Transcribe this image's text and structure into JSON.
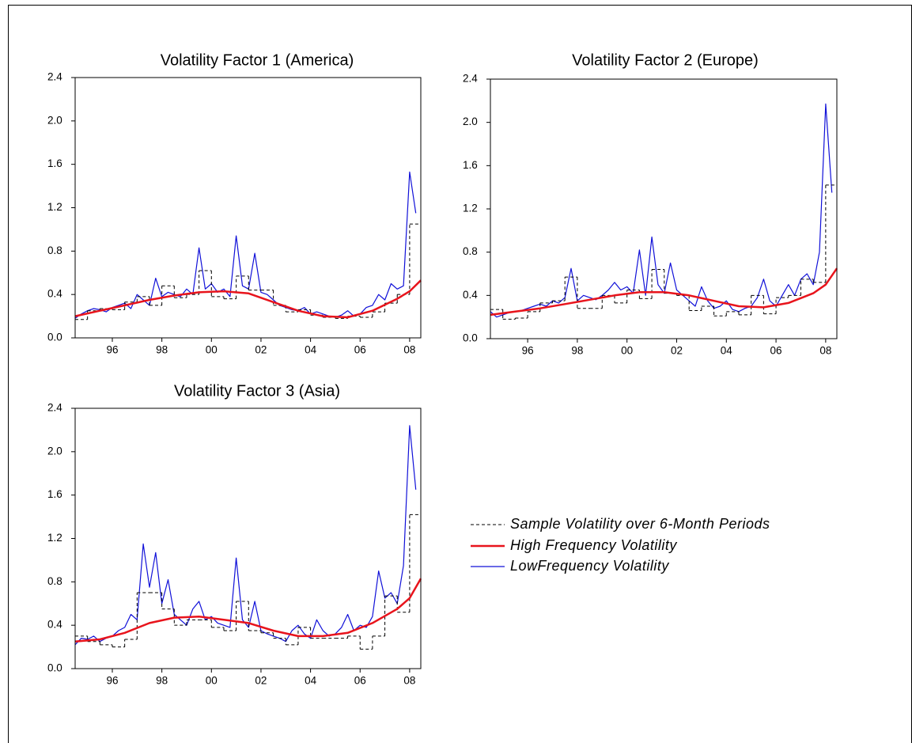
{
  "chart_data": [
    {
      "type": "line",
      "title": "Volatility Factor 1 (America)",
      "xlim": [
        1995,
        2008.95
      ],
      "ylim": [
        0,
        2.4
      ],
      "xticks": [
        {
          "value": 1996.5,
          "label": "96"
        },
        {
          "value": 1998.5,
          "label": "98"
        },
        {
          "value": 2000.5,
          "label": "00"
        },
        {
          "value": 2002.5,
          "label": "02"
        },
        {
          "value": 2004.5,
          "label": "04"
        },
        {
          "value": 2006.5,
          "label": "06"
        },
        {
          "value": 2008.5,
          "label": "08"
        }
      ],
      "yticks": [
        {
          "value": 0,
          "label": "0.0"
        },
        0.4,
        0.8,
        1.2,
        1.6,
        {
          "value": 2,
          "label": "2.0"
        },
        2.4
      ],
      "series": [
        {
          "name": "Sample Volatility over 6-Month Periods",
          "color": "#000000",
          "dashed": true,
          "step": true,
          "x": [
            1995,
            1995.5,
            1996,
            1996.5,
            1997,
            1997.5,
            1998,
            1998.5,
            1999,
            1999.5,
            2000,
            2000.5,
            2001,
            2001.5,
            2002,
            2002.5,
            2003,
            2003.5,
            2004,
            2004.5,
            2005,
            2005.5,
            2006,
            2006.5,
            2007,
            2007.5,
            2008,
            2008.5
          ],
          "values": [
            0.17,
            0.25,
            0.27,
            0.26,
            0.33,
            0.38,
            0.3,
            0.48,
            0.37,
            0.4,
            0.62,
            0.38,
            0.36,
            0.57,
            0.44,
            0.44,
            0.3,
            0.24,
            0.26,
            0.21,
            0.19,
            0.18,
            0.2,
            0.19,
            0.24,
            0.32,
            0.4,
            1.05
          ]
        },
        {
          "name": "High Frequency Volatility",
          "color": "#e8141c",
          "width": 2.5,
          "x": [
            1995,
            1996,
            1997,
            1998,
            1999,
            2000,
            2001,
            2002,
            2003,
            2004,
            2005,
            2006,
            2007,
            2008,
            2008.5,
            2008.95
          ],
          "values": [
            0.2,
            0.25,
            0.3,
            0.35,
            0.39,
            0.42,
            0.43,
            0.41,
            0.33,
            0.25,
            0.2,
            0.19,
            0.25,
            0.36,
            0.43,
            0.53
          ]
        },
        {
          "name": "LowFrequency Volatility",
          "color": "#1010d8",
          "width": 1.2,
          "x": [
            1995,
            1995.25,
            1995.5,
            1995.75,
            1996,
            1996.25,
            1996.5,
            1996.75,
            1997,
            1997.25,
            1997.5,
            1997.75,
            1998,
            1998.25,
            1998.5,
            1998.75,
            1999,
            1999.25,
            1999.5,
            1999.75,
            2000,
            2000.25,
            2000.5,
            2000.75,
            2001,
            2001.25,
            2001.5,
            2001.75,
            2002,
            2002.25,
            2002.5,
            2002.75,
            2003,
            2003.25,
            2003.5,
            2003.75,
            2004,
            2004.25,
            2004.5,
            2004.75,
            2005,
            2005.25,
            2005.5,
            2005.75,
            2006,
            2006.25,
            2006.5,
            2006.75,
            2007,
            2007.25,
            2007.5,
            2007.75,
            2008,
            2008.25,
            2008.5,
            2008.75
          ],
          "values": [
            0.18,
            0.22,
            0.25,
            0.27,
            0.26,
            0.24,
            0.28,
            0.3,
            0.32,
            0.27,
            0.4,
            0.35,
            0.3,
            0.55,
            0.38,
            0.42,
            0.4,
            0.38,
            0.45,
            0.4,
            0.83,
            0.45,
            0.5,
            0.42,
            0.45,
            0.38,
            0.94,
            0.48,
            0.45,
            0.78,
            0.42,
            0.4,
            0.35,
            0.3,
            0.28,
            0.26,
            0.25,
            0.28,
            0.22,
            0.24,
            0.22,
            0.2,
            0.19,
            0.21,
            0.25,
            0.2,
            0.22,
            0.28,
            0.3,
            0.4,
            0.35,
            0.5,
            0.45,
            0.48,
            1.53,
            1.15
          ]
        }
      ]
    },
    {
      "type": "line",
      "title": "Volatility Factor 2 (Europe)",
      "xlim": [
        1995,
        2008.95
      ],
      "ylim": [
        0,
        2.4
      ],
      "xticks": [
        {
          "value": 1996.5,
          "label": "96"
        },
        {
          "value": 1998.5,
          "label": "98"
        },
        {
          "value": 2000.5,
          "label": "00"
        },
        {
          "value": 2002.5,
          "label": "02"
        },
        {
          "value": 2004.5,
          "label": "04"
        },
        {
          "value": 2006.5,
          "label": "06"
        },
        {
          "value": 2008.5,
          "label": "08"
        }
      ],
      "yticks": [
        {
          "value": 0,
          "label": "0.0"
        },
        0.4,
        0.8,
        1.2,
        1.6,
        {
          "value": 2,
          "label": "2.0"
        },
        2.4
      ],
      "series": [
        {
          "color": "#000000",
          "dashed": true,
          "step": true,
          "x": [
            1995,
            1995.5,
            1996,
            1996.5,
            1997,
            1997.5,
            1998,
            1998.5,
            1999,
            1999.5,
            2000,
            2000.5,
            2001,
            2001.5,
            2002,
            2002.5,
            2003,
            2003.5,
            2004,
            2004.5,
            2005,
            2005.5,
            2006,
            2006.5,
            2007,
            2007.5,
            2008,
            2008.5
          ],
          "values": [
            0.27,
            0.18,
            0.19,
            0.25,
            0.33,
            0.35,
            0.57,
            0.28,
            0.28,
            0.4,
            0.33,
            0.45,
            0.37,
            0.64,
            0.42,
            0.4,
            0.26,
            0.3,
            0.21,
            0.25,
            0.22,
            0.4,
            0.23,
            0.38,
            0.4,
            0.55,
            0.52,
            1.42
          ]
        },
        {
          "color": "#e8141c",
          "width": 2.5,
          "x": [
            1995,
            1996,
            1997,
            1998,
            1999,
            2000,
            2001,
            2002,
            2003,
            2004,
            2005,
            2006,
            2007,
            2008,
            2008.5,
            2008.95
          ],
          "values": [
            0.22,
            0.25,
            0.28,
            0.32,
            0.36,
            0.4,
            0.43,
            0.43,
            0.4,
            0.35,
            0.3,
            0.29,
            0.33,
            0.42,
            0.5,
            0.65
          ]
        },
        {
          "color": "#1010d8",
          "width": 1.2,
          "x": [
            1995,
            1995.25,
            1995.5,
            1995.75,
            1996,
            1996.25,
            1996.5,
            1996.75,
            1997,
            1997.25,
            1997.5,
            1997.75,
            1998,
            1998.25,
            1998.5,
            1998.75,
            1999,
            1999.25,
            1999.5,
            1999.75,
            2000,
            2000.25,
            2000.5,
            2000.75,
            2001,
            2001.25,
            2001.5,
            2001.75,
            2002,
            2002.25,
            2002.5,
            2002.75,
            2003,
            2003.25,
            2003.5,
            2003.75,
            2004,
            2004.25,
            2004.5,
            2004.75,
            2005,
            2005.25,
            2005.5,
            2005.75,
            2006,
            2006.25,
            2006.5,
            2006.75,
            2007,
            2007.25,
            2007.5,
            2007.75,
            2008,
            2008.25,
            2008.5,
            2008.75
          ],
          "values": [
            0.25,
            0.2,
            0.22,
            0.24,
            0.25,
            0.26,
            0.28,
            0.3,
            0.32,
            0.3,
            0.35,
            0.33,
            0.38,
            0.65,
            0.35,
            0.4,
            0.38,
            0.36,
            0.4,
            0.45,
            0.52,
            0.45,
            0.48,
            0.42,
            0.82,
            0.4,
            0.94,
            0.5,
            0.42,
            0.7,
            0.45,
            0.4,
            0.35,
            0.3,
            0.48,
            0.35,
            0.28,
            0.3,
            0.35,
            0.27,
            0.25,
            0.28,
            0.3,
            0.38,
            0.55,
            0.35,
            0.3,
            0.4,
            0.5,
            0.4,
            0.55,
            0.6,
            0.5,
            0.8,
            2.17,
            1.35
          ]
        }
      ]
    },
    {
      "type": "line",
      "title": "Volatility Factor 3 (Asia)",
      "xlim": [
        1995,
        2008.95
      ],
      "ylim": [
        0,
        2.4
      ],
      "xticks": [
        {
          "value": 1996.5,
          "label": "96"
        },
        {
          "value": 1998.5,
          "label": "98"
        },
        {
          "value": 2000.5,
          "label": "00"
        },
        {
          "value": 2002.5,
          "label": "02"
        },
        {
          "value": 2004.5,
          "label": "04"
        },
        {
          "value": 2006.5,
          "label": "06"
        },
        {
          "value": 2008.5,
          "label": "08"
        }
      ],
      "yticks": [
        {
          "value": 0,
          "label": "0.0"
        },
        0.4,
        0.8,
        1.2,
        1.6,
        {
          "value": 2,
          "label": "2.0"
        },
        2.4
      ],
      "series": [
        {
          "color": "#000000",
          "dashed": true,
          "step": true,
          "x": [
            1995,
            1995.5,
            1996,
            1996.5,
            1997,
            1997.5,
            1998,
            1998.5,
            1999,
            1999.5,
            2000,
            2000.5,
            2001,
            2001.5,
            2002,
            2002.5,
            2003,
            2003.5,
            2004,
            2004.5,
            2005,
            2005.5,
            2006,
            2006.5,
            2007,
            2007.5,
            2008,
            2008.5
          ],
          "values": [
            0.3,
            0.25,
            0.22,
            0.2,
            0.27,
            0.7,
            0.7,
            0.55,
            0.4,
            0.45,
            0.45,
            0.38,
            0.35,
            0.62,
            0.35,
            0.33,
            0.28,
            0.22,
            0.38,
            0.28,
            0.28,
            0.28,
            0.3,
            0.18,
            0.3,
            0.67,
            0.52,
            1.42
          ]
        },
        {
          "color": "#e8141c",
          "width": 2.5,
          "x": [
            1995,
            1996,
            1997,
            1998,
            1999,
            2000,
            2001,
            2002,
            2003,
            2004,
            2005,
            2006,
            2007,
            2008,
            2008.5,
            2008.95
          ],
          "values": [
            0.25,
            0.27,
            0.33,
            0.42,
            0.47,
            0.48,
            0.45,
            0.42,
            0.35,
            0.3,
            0.3,
            0.33,
            0.42,
            0.55,
            0.65,
            0.83
          ]
        },
        {
          "color": "#1010d8",
          "width": 1.2,
          "x": [
            1995,
            1995.25,
            1995.5,
            1995.75,
            1996,
            1996.25,
            1996.5,
            1996.75,
            1997,
            1997.25,
            1997.5,
            1997.75,
            1998,
            1998.25,
            1998.5,
            1998.75,
            1999,
            1999.25,
            1999.5,
            1999.75,
            2000,
            2000.25,
            2000.5,
            2000.75,
            2001,
            2001.25,
            2001.5,
            2001.75,
            2002,
            2002.25,
            2002.5,
            2002.75,
            2003,
            2003.25,
            2003.5,
            2003.75,
            2004,
            2004.25,
            2004.5,
            2004.75,
            2005,
            2005.25,
            2005.5,
            2005.75,
            2006,
            2006.25,
            2006.5,
            2006.75,
            2007,
            2007.25,
            2007.5,
            2007.75,
            2008,
            2008.25,
            2008.5,
            2008.75
          ],
          "values": [
            0.22,
            0.28,
            0.27,
            0.3,
            0.25,
            0.28,
            0.3,
            0.35,
            0.38,
            0.5,
            0.45,
            1.15,
            0.75,
            1.07,
            0.6,
            0.82,
            0.5,
            0.45,
            0.4,
            0.55,
            0.62,
            0.45,
            0.48,
            0.42,
            0.4,
            0.38,
            1.02,
            0.45,
            0.38,
            0.62,
            0.35,
            0.32,
            0.3,
            0.28,
            0.25,
            0.35,
            0.4,
            0.32,
            0.28,
            0.45,
            0.35,
            0.3,
            0.32,
            0.38,
            0.5,
            0.35,
            0.4,
            0.38,
            0.48,
            0.9,
            0.65,
            0.7,
            0.6,
            0.95,
            2.24,
            1.65
          ]
        }
      ]
    }
  ]
}
